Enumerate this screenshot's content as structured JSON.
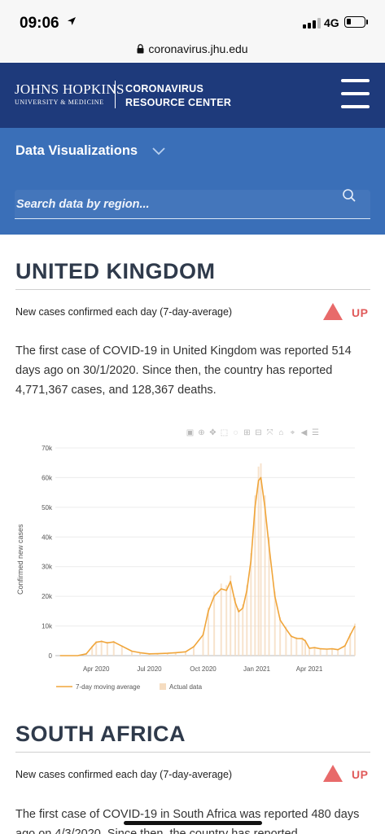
{
  "status": {
    "time": "09:06",
    "network": "4G"
  },
  "browser": {
    "url": "coronavirus.jhu.edu"
  },
  "header": {
    "logo_main": "JOHNS HOPKINS",
    "logo_sub": "UNIVERSITY & MEDICINE",
    "crc_line1": "CORONAVIRUS",
    "crc_line2": "RESOURCE CENTER"
  },
  "data_viz": {
    "title": "Data Visualizations",
    "search_placeholder": "Search data by region..."
  },
  "countries": [
    {
      "name": "UNITED KINGDOM",
      "trend_label": "New cases confirmed each day (7-day-average)",
      "trend": "UP",
      "summary": "The first case of COVID-19 in United Kingdom was reported 514 days ago on 30/1/2020. Since then, the country has reported 4,771,367 cases, and 128,367 deaths."
    },
    {
      "name": "SOUTH AFRICA",
      "trend_label": "New cases confirmed each day (7-day-average)",
      "trend": "UP",
      "summary": "The first case of COVID-19 in South Africa was reported 480 days ago on 4/3/2020. Since then, the country has reported"
    }
  ],
  "colors": {
    "header": "#1e3a7b",
    "viz_bar": "#3a6fb8",
    "trend_up": "#e05a5a",
    "line": "#f0a53a",
    "bars": "#f5dcc0"
  },
  "chart_data": {
    "type": "line",
    "ylabel": "Confirmed new cases",
    "ylim": [
      0,
      70000
    ],
    "yticks": [
      0,
      10000,
      20000,
      30000,
      40000,
      50000,
      60000,
      70000
    ],
    "ytick_labels": [
      "0",
      "10k",
      "20k",
      "30k",
      "40k",
      "50k",
      "60k",
      "70k"
    ],
    "xticks": [
      "Apr 2020",
      "Jul 2020",
      "Oct 2020",
      "Jan 2021",
      "Apr 2021"
    ],
    "legend": [
      "7-day moving average",
      "Actual data"
    ],
    "series": [
      {
        "name": "7-day moving average",
        "x": [
          "2020-01-30",
          "2020-03-01",
          "2020-03-15",
          "2020-03-25",
          "2020-04-01",
          "2020-04-10",
          "2020-04-20",
          "2020-05-01",
          "2020-05-15",
          "2020-06-01",
          "2020-06-15",
          "2020-07-01",
          "2020-07-15",
          "2020-08-01",
          "2020-08-15",
          "2020-09-01",
          "2020-09-15",
          "2020-10-01",
          "2020-10-10",
          "2020-10-20",
          "2020-11-01",
          "2020-11-10",
          "2020-11-17",
          "2020-11-25",
          "2020-12-01",
          "2020-12-08",
          "2020-12-15",
          "2020-12-22",
          "2020-12-29",
          "2021-01-04",
          "2021-01-08",
          "2021-01-15",
          "2021-01-22",
          "2021-02-01",
          "2021-02-10",
          "2021-02-20",
          "2021-03-01",
          "2021-03-10",
          "2021-03-20",
          "2021-03-25",
          "2021-04-01",
          "2021-04-10",
          "2021-04-20",
          "2021-05-01",
          "2021-05-10",
          "2021-05-20",
          "2021-06-01",
          "2021-06-10",
          "2021-06-18"
        ],
        "values": [
          0,
          30,
          600,
          3000,
          4500,
          4800,
          4300,
          4600,
          3200,
          1500,
          1000,
          600,
          650,
          800,
          1000,
          1300,
          3000,
          7000,
          15000,
          20000,
          22500,
          22000,
          25000,
          18000,
          14800,
          16000,
          22000,
          32000,
          50000,
          59000,
          60000,
          50000,
          37000,
          20000,
          12000,
          9000,
          6500,
          5800,
          5700,
          5000,
          2500,
          2700,
          2300,
          2200,
          2300,
          2000,
          3300,
          7000,
          10000
        ]
      }
    ]
  }
}
